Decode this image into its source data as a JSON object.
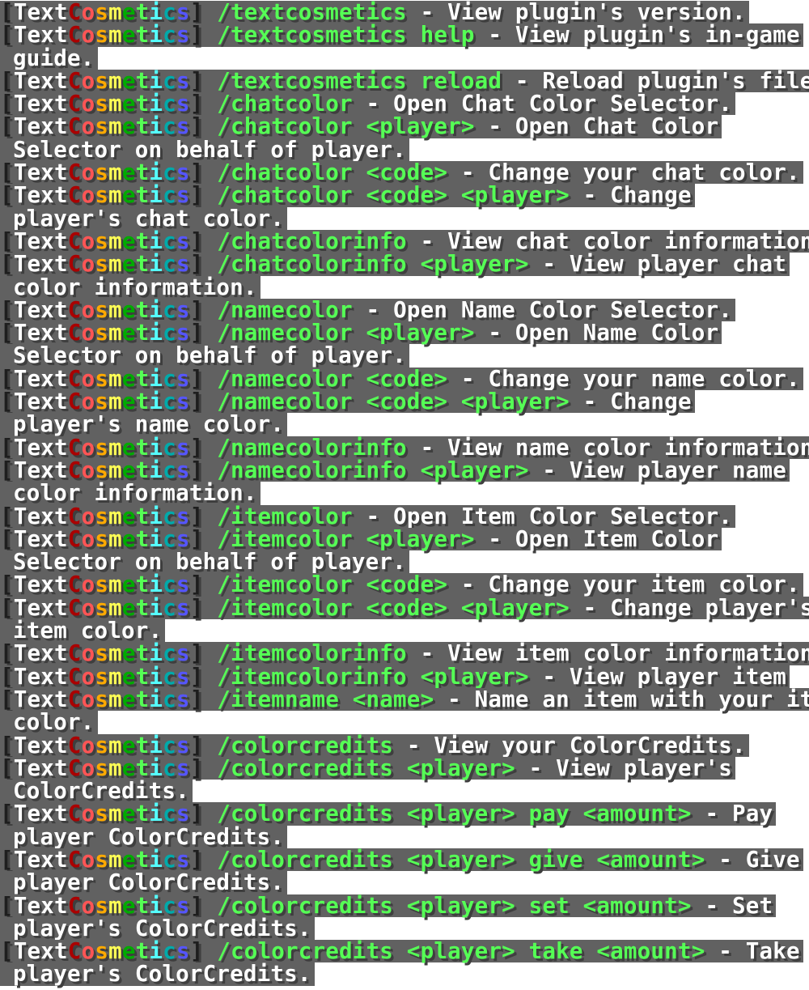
{
  "prefix": {
    "open_bracket": "[",
    "text_word": "Text",
    "rainbow": [
      {
        "ch": "C",
        "color": "#aa0000"
      },
      {
        "ch": "o",
        "color": "#ff5555"
      },
      {
        "ch": "s",
        "color": "#ffaa00"
      },
      {
        "ch": "m",
        "color": "#ffff55"
      },
      {
        "ch": "e",
        "color": "#00aa00"
      },
      {
        "ch": "t",
        "color": "#55ff55"
      },
      {
        "ch": "i",
        "color": "#55ffff"
      },
      {
        "ch": "c",
        "color": "#00aaaa"
      },
      {
        "ch": "s",
        "color": "#5555ff"
      }
    ],
    "close_bracket": "]"
  },
  "colors": {
    "command": "#55ff55",
    "description": "#ffffff",
    "chat_background": "#616161"
  },
  "messages": [
    {
      "cmd": "/textcosmetics",
      "desc": " - View plugin's version.",
      "cont": ""
    },
    {
      "cmd": "/textcosmetics help",
      "desc": " - View plugin's in-game",
      "cont": "guide."
    },
    {
      "cmd": "/textcosmetics reload",
      "desc": " - Reload plugin's files.",
      "cont": ""
    },
    {
      "cmd": "/chatcolor",
      "desc": " - Open Chat Color Selector.",
      "cont": ""
    },
    {
      "cmd": "/chatcolor <player>",
      "desc": " - Open Chat Color",
      "cont": "Selector on behalf of player."
    },
    {
      "cmd": "/chatcolor <code>",
      "desc": " - Change your chat color.",
      "cont": ""
    },
    {
      "cmd": "/chatcolor <code> <player>",
      "desc": " - Change",
      "cont": "player's chat color."
    },
    {
      "cmd": "/chatcolorinfo",
      "desc": " - View chat color information.",
      "cont": ""
    },
    {
      "cmd": "/chatcolorinfo <player>",
      "desc": " - View player chat",
      "cont": "color information."
    },
    {
      "cmd": "/namecolor",
      "desc": " - Open Name Color Selector.",
      "cont": ""
    },
    {
      "cmd": "/namecolor <player>",
      "desc": " - Open Name Color",
      "cont": "Selector on behalf of player."
    },
    {
      "cmd": "/namecolor <code>",
      "desc": " - Change your name color.",
      "cont": ""
    },
    {
      "cmd": "/namecolor <code> <player>",
      "desc": " - Change",
      "cont": "player's name color."
    },
    {
      "cmd": "/namecolorinfo",
      "desc": " - View name color information.",
      "cont": ""
    },
    {
      "cmd": "/namecolorinfo <player>",
      "desc": " - View player name",
      "cont": "color information."
    },
    {
      "cmd": "/itemcolor",
      "desc": " - Open Item Color Selector.",
      "cont": ""
    },
    {
      "cmd": "/itemcolor <player>",
      "desc": " - Open Item Color",
      "cont": "Selector on behalf of player."
    },
    {
      "cmd": "/itemcolor <code>",
      "desc": " - Change your item color.",
      "cont": ""
    },
    {
      "cmd": "/itemcolor <code> <player>",
      "desc": " - Change player's",
      "cont": "item color."
    },
    {
      "cmd": "/itemcolorinfo",
      "desc": " - View item color information.",
      "cont": ""
    },
    {
      "cmd": "/itemcolorinfo <player>",
      "desc": " - View player item",
      "cont": ""
    },
    {
      "cmd": "/itemname <name>",
      "desc": " - Name an item with your item",
      "cont": "color."
    },
    {
      "cmd": "/colorcredits",
      "desc": " - View your ColorCredits.",
      "cont": ""
    },
    {
      "cmd": "/colorcredits <player>",
      "desc": " - View player's",
      "cont": "ColorCredits."
    },
    {
      "cmd": "/colorcredits <player> pay <amount>",
      "desc": " - Pay",
      "cont": "player ColorCredits."
    },
    {
      "cmd": "/colorcredits <player> give <amount>",
      "desc": " - Give",
      "cont": "player ColorCredits."
    },
    {
      "cmd": "/colorcredits <player> set <amount>",
      "desc": " - Set",
      "cont": "player's ColorCredits."
    },
    {
      "cmd": "/colorcredits <player> take <amount>",
      "desc": " - Take",
      "cont": "player's ColorCredits."
    }
  ]
}
